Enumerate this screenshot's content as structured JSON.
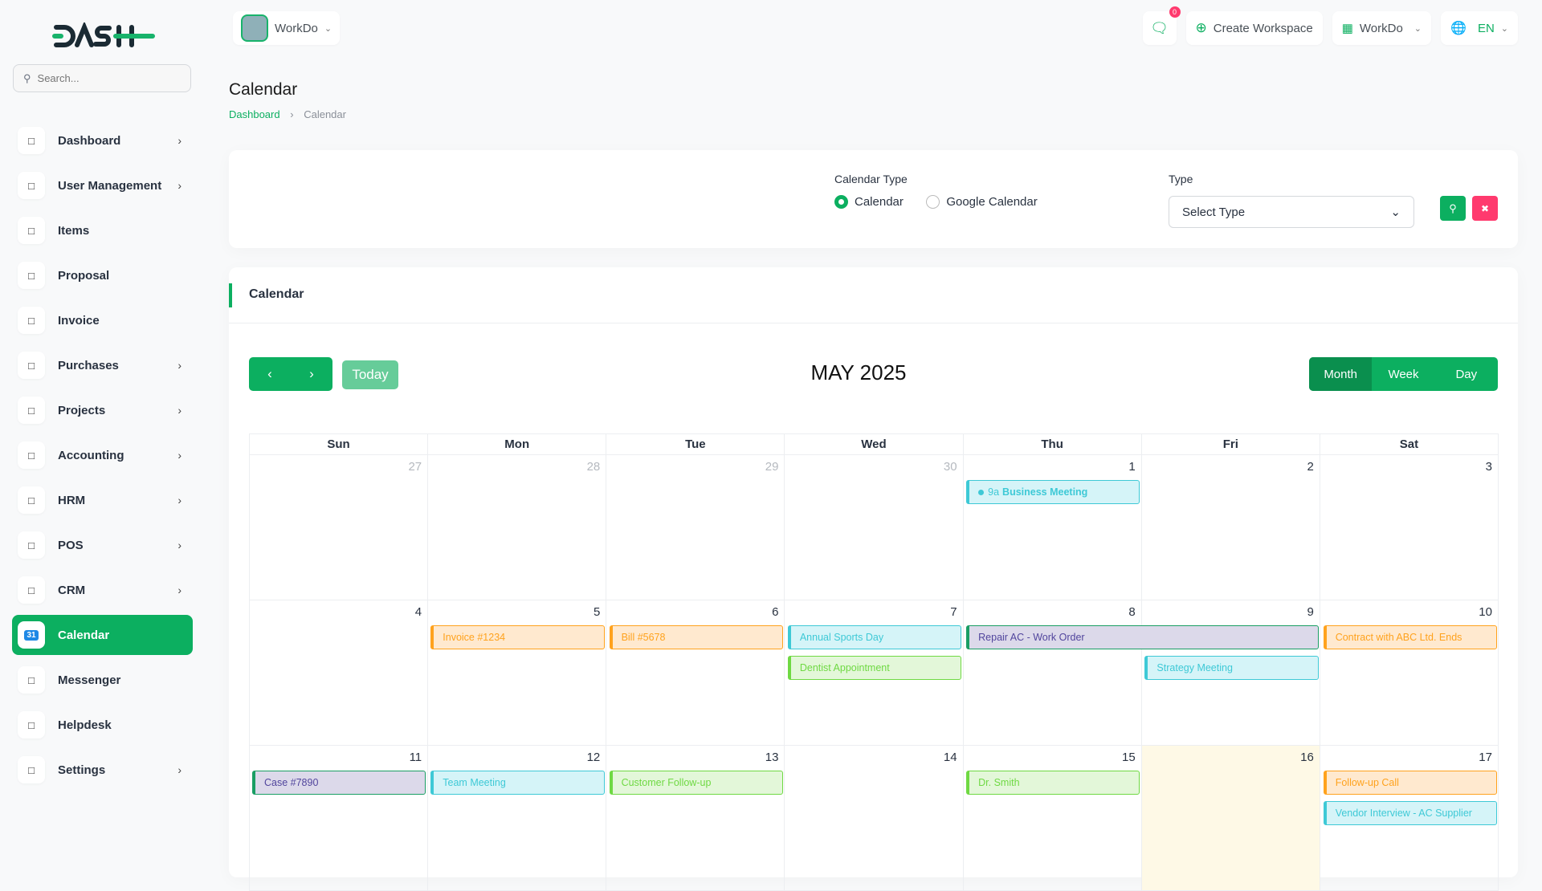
{
  "brand": {
    "logo_text": "DASH",
    "accent": "#0caf60"
  },
  "sidebar": {
    "search_placeholder": "Search...",
    "items": [
      {
        "label": "Dashboard",
        "icon": "home-icon",
        "chevron": true
      },
      {
        "label": "User Management",
        "icon": "users-icon",
        "chevron": true
      },
      {
        "label": "Items",
        "icon": "cart-icon",
        "chevron": false
      },
      {
        "label": "Proposal",
        "icon": "proposal-icon",
        "chevron": false
      },
      {
        "label": "Invoice",
        "icon": "file-icon",
        "chevron": false
      },
      {
        "label": "Purchases",
        "icon": "cart-icon",
        "chevron": true
      },
      {
        "label": "Projects",
        "icon": "checkbox-icon",
        "chevron": true
      },
      {
        "label": "Accounting",
        "icon": "grid-icon",
        "chevron": true
      },
      {
        "label": "HRM",
        "icon": "hrm-icon",
        "chevron": true
      },
      {
        "label": "POS",
        "icon": "dots-grid-icon",
        "chevron": true
      },
      {
        "label": "CRM",
        "icon": "crm-icon",
        "chevron": true
      },
      {
        "label": "Calendar",
        "icon": "calendar-icon",
        "chevron": false,
        "active": true
      },
      {
        "label": "Messenger",
        "icon": "chat-icon",
        "chevron": false
      },
      {
        "label": "Helpdesk",
        "icon": "headset-icon",
        "chevron": false
      },
      {
        "label": "Settings",
        "icon": "gear-icon",
        "chevron": true
      }
    ]
  },
  "topbar": {
    "workspace": "WorkDo",
    "notification_count": "0",
    "create_workspace": "Create Workspace",
    "company": "WorkDo",
    "language": "EN"
  },
  "page": {
    "title": "Calendar",
    "breadcrumb": [
      "Dashboard",
      "Calendar"
    ]
  },
  "filter": {
    "calendar_type_label": "Calendar Type",
    "options": [
      "Calendar",
      "Google Calendar"
    ],
    "selected": "Calendar",
    "type_label": "Type",
    "type_value": "Select Type"
  },
  "calendar": {
    "card_title": "Calendar",
    "today_label": "Today",
    "month_title": "MAY 2025",
    "views": [
      "Month",
      "Week",
      "Day"
    ],
    "active_view": "Month",
    "weekdays": [
      "Sun",
      "Mon",
      "Tue",
      "Wed",
      "Thu",
      "Fri",
      "Sat"
    ],
    "today": 16,
    "weeks": [
      [
        27,
        28,
        29,
        30,
        1,
        2,
        3
      ],
      [
        4,
        5,
        6,
        7,
        8,
        9,
        10
      ],
      [
        11,
        12,
        13,
        14,
        15,
        16,
        17
      ]
    ],
    "events": [
      {
        "title": "Business Meeting",
        "time": "9a",
        "start": 1,
        "end": 1,
        "color": "cyan",
        "dot": true
      },
      {
        "title": "Invoice #1234",
        "start": 5,
        "end": 5,
        "color": "orange"
      },
      {
        "title": "Bill #5678",
        "start": 6,
        "end": 6,
        "color": "orange"
      },
      {
        "title": "Annual Sports Day",
        "start": 7,
        "end": 7,
        "color": "cyan"
      },
      {
        "title": "Repair AC - Work Order",
        "start": 8,
        "end": 9,
        "color": "purple"
      },
      {
        "title": "Contract with ABC Ltd. Ends",
        "start": 10,
        "end": 10,
        "color": "orange"
      },
      {
        "title": "Dentist Appointment",
        "start": 7,
        "end": 7,
        "color": "green"
      },
      {
        "title": "Strategy Meeting",
        "start": 9,
        "end": 9,
        "color": "cyan"
      },
      {
        "title": "Case #7890",
        "start": 11,
        "end": 11,
        "color": "purple"
      },
      {
        "title": "Team Meeting",
        "start": 12,
        "end": 12,
        "color": "cyan"
      },
      {
        "title": "Customer Follow-up",
        "start": 13,
        "end": 13,
        "color": "green"
      },
      {
        "title": "Dr. Smith",
        "start": 15,
        "end": 15,
        "color": "green"
      },
      {
        "title": "Follow-up Call",
        "start": 17,
        "end": 17,
        "color": "orange"
      },
      {
        "title": "Vendor Interview - AC Supplier",
        "start": 17,
        "end": 17,
        "color": "cyan"
      }
    ],
    "colors": {
      "cyan": {
        "bg": "#d5f4f8",
        "border": "#3ec9d6",
        "text": "#3ec9d6"
      },
      "orange": {
        "bg": "#ffe9cf",
        "border": "#ffa21d",
        "text": "#ffa21d"
      },
      "purple": {
        "bg": "#dcd9ea",
        "border": "#1a9e64",
        "text": "#51459d"
      },
      "green": {
        "bg": "#e3f7d9",
        "border": "#6fd943",
        "text": "#6fd943"
      }
    }
  }
}
